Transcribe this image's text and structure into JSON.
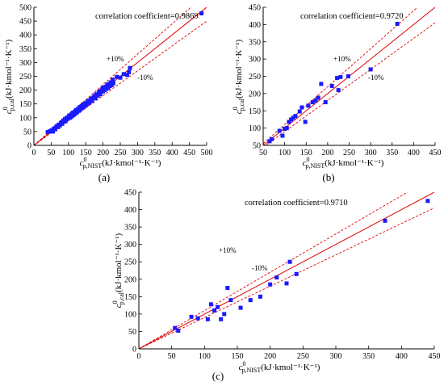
{
  "figure": {
    "panel_captions": [
      "(a)",
      "(b)",
      "(c)"
    ]
  },
  "colors": {
    "points": "#1a1aff",
    "parity_line": "#e00000",
    "band_lines": "#e00000",
    "axes": "#000000"
  },
  "labels": {
    "x_axis_main": "c",
    "x_axis_sup": "0",
    "x_axis_sub": "p,NIST",
    "x_axis_unit": "(kJ·kmol⁻¹·K⁻¹)",
    "y_axis_main": "c",
    "y_axis_sup": "0",
    "y_axis_sub": "p,cal",
    "y_axis_unit": "(kJ·kmol⁻¹·K⁻¹)",
    "upper_band": "+10%",
    "lower_band": "-10%"
  },
  "chart_data": [
    {
      "type": "scatter",
      "caption": "(a)",
      "annotation": "correlation coefficient=0.9869",
      "xlim": [
        0,
        500
      ],
      "ylim": [
        0,
        500
      ],
      "xticks": [
        0,
        50,
        100,
        150,
        200,
        250,
        300,
        350,
        400,
        450,
        500
      ],
      "yticks": [
        0,
        50,
        100,
        150,
        200,
        250,
        300,
        350,
        400,
        450,
        500
      ],
      "reference_lines": [
        "y = x",
        "y = 1.1x",
        "y = 0.9x"
      ],
      "points": [
        [
          40,
          48
        ],
        [
          45,
          50
        ],
        [
          48,
          52
        ],
        [
          52,
          55
        ],
        [
          55,
          50
        ],
        [
          58,
          60
        ],
        [
          60,
          62
        ],
        [
          62,
          58
        ],
        [
          65,
          68
        ],
        [
          68,
          70
        ],
        [
          70,
          66
        ],
        [
          72,
          75
        ],
        [
          75,
          72
        ],
        [
          78,
          80
        ],
        [
          80,
          84
        ],
        [
          82,
          78
        ],
        [
          85,
          90
        ],
        [
          88,
          86
        ],
        [
          90,
          95
        ],
        [
          92,
          88
        ],
        [
          95,
          100
        ],
        [
          98,
          96
        ],
        [
          100,
          102
        ],
        [
          102,
          108
        ],
        [
          105,
          100
        ],
        [
          108,
          112
        ],
        [
          110,
          105
        ],
        [
          112,
          118
        ],
        [
          115,
          110
        ],
        [
          118,
          122
        ],
        [
          120,
          115
        ],
        [
          122,
          128
        ],
        [
          125,
          120
        ],
        [
          128,
          132
        ],
        [
          130,
          125
        ],
        [
          132,
          138
        ],
        [
          135,
          130
        ],
        [
          138,
          142
        ],
        [
          140,
          136
        ],
        [
          142,
          148
        ],
        [
          145,
          140
        ],
        [
          148,
          150
        ],
        [
          150,
          145
        ],
        [
          152,
          155
        ],
        [
          155,
          150
        ],
        [
          158,
          162
        ],
        [
          160,
          155
        ],
        [
          165,
          168
        ],
        [
          168,
          160
        ],
        [
          170,
          172
        ],
        [
          175,
          178
        ],
        [
          178,
          170
        ],
        [
          180,
          185
        ],
        [
          185,
          180
        ],
        [
          188,
          192
        ],
        [
          190,
          195
        ],
        [
          192,
          185
        ],
        [
          195,
          198
        ],
        [
          198,
          205
        ],
        [
          200,
          195
        ],
        [
          202,
          210
        ],
        [
          205,
          200
        ],
        [
          208,
          212
        ],
        [
          210,
          205
        ],
        [
          212,
          220
        ],
        [
          215,
          208
        ],
        [
          218,
          222
        ],
        [
          220,
          215
        ],
        [
          222,
          228
        ],
        [
          225,
          218
        ],
        [
          228,
          238
        ],
        [
          230,
          225
        ],
        [
          240,
          248
        ],
        [
          250,
          245
        ],
        [
          260,
          258
        ],
        [
          270,
          255
        ],
        [
          275,
          265
        ],
        [
          278,
          280
        ],
        [
          485,
          478
        ]
      ]
    },
    {
      "type": "scatter",
      "caption": "(b)",
      "annotation": "correlation coefficient=0.9720",
      "xlim": [
        50,
        450
      ],
      "ylim": [
        50,
        450
      ],
      "xticks": [
        50,
        100,
        150,
        200,
        250,
        300,
        350,
        400,
        450
      ],
      "yticks": [
        50,
        100,
        150,
        200,
        250,
        300,
        350,
        400,
        450
      ],
      "reference_lines": [
        "y = x",
        "y = 1.1x",
        "y = 0.9x"
      ],
      "points": [
        [
          65,
          62
        ],
        [
          70,
          68
        ],
        [
          88,
          92
        ],
        [
          95,
          78
        ],
        [
          100,
          98
        ],
        [
          105,
          100
        ],
        [
          110,
          118
        ],
        [
          115,
          125
        ],
        [
          120,
          130
        ],
        [
          125,
          135
        ],
        [
          135,
          148
        ],
        [
          140,
          160
        ],
        [
          148,
          118
        ],
        [
          155,
          165
        ],
        [
          165,
          175
        ],
        [
          172,
          180
        ],
        [
          178,
          188
        ],
        [
          185,
          228
        ],
        [
          195,
          175
        ],
        [
          210,
          222
        ],
        [
          222,
          245
        ],
        [
          225,
          210
        ],
        [
          230,
          248
        ],
        [
          248,
          250
        ],
        [
          300,
          270
        ],
        [
          362,
          402
        ]
      ]
    },
    {
      "type": "scatter",
      "caption": "(c)",
      "annotation": "correlation coefficient=0.9710",
      "xlim": [
        0,
        450
      ],
      "ylim": [
        0,
        450
      ],
      "xticks": [
        0,
        50,
        100,
        150,
        200,
        250,
        300,
        350,
        400,
        450
      ],
      "yticks": [
        0,
        50,
        100,
        150,
        200,
        250,
        300,
        350,
        400,
        450
      ],
      "reference_lines": [
        "y = x",
        "y = 1.1x",
        "y = 0.9x"
      ],
      "points": [
        [
          55,
          60
        ],
        [
          60,
          52
        ],
        [
          80,
          92
        ],
        [
          90,
          88
        ],
        [
          105,
          85
        ],
        [
          110,
          128
        ],
        [
          115,
          110
        ],
        [
          120,
          120
        ],
        [
          125,
          85
        ],
        [
          130,
          100
        ],
        [
          135,
          175
        ],
        [
          140,
          140
        ],
        [
          155,
          118
        ],
        [
          170,
          140
        ],
        [
          185,
          150
        ],
        [
          200,
          185
        ],
        [
          210,
          205
        ],
        [
          225,
          188
        ],
        [
          230,
          250
        ],
        [
          240,
          215
        ],
        [
          375,
          368
        ],
        [
          440,
          425
        ]
      ]
    }
  ]
}
